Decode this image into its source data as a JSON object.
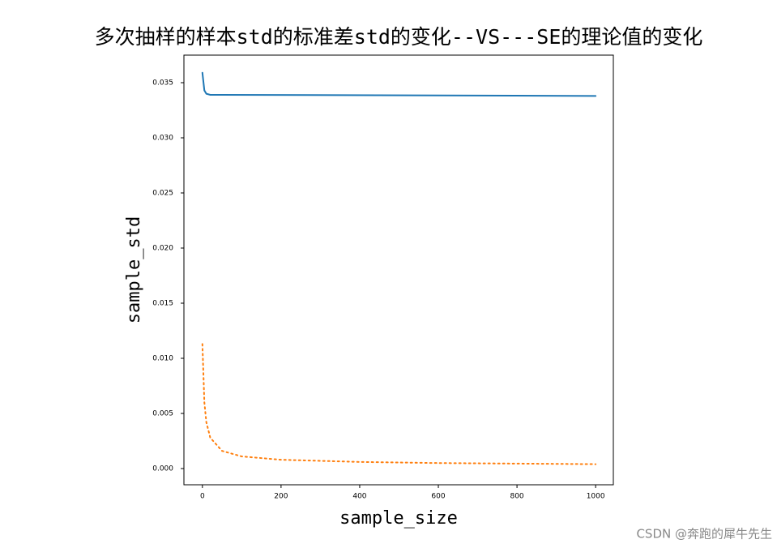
{
  "chart_data": {
    "type": "line",
    "title": "多次抽样的样本std的标准差std的变化--VS---SE的理论值的变化",
    "x_label": "sample_size",
    "y_label": "sample_std",
    "watermark": "CSDN @奔跑的犀牛先生",
    "series": [
      {
        "color": "#1f77b4",
        "linestyle": "solid",
        "x": [
          0,
          5,
          10,
          20,
          50,
          1000
        ],
        "values": [
          0.0359,
          0.0343,
          0.034,
          0.0339,
          0.0339,
          0.0338
        ]
      },
      {
        "color": "#ff7f0e",
        "linestyle": "dotted",
        "x": [
          0,
          5,
          10,
          20,
          50,
          100,
          200,
          400,
          600,
          1000
        ],
        "values": [
          0.0113,
          0.006,
          0.0042,
          0.0028,
          0.0016,
          0.0011,
          0.0008,
          0.0006,
          0.0005,
          0.0004
        ]
      }
    ],
    "xlim": [
      -47,
      1045
    ],
    "ylim": [
      -0.00147,
      0.0375
    ],
    "xticks": [
      0,
      200,
      400,
      600,
      800,
      1000
    ],
    "yticks": [
      {
        "value": 0,
        "label": "0.000"
      },
      0.005,
      {
        "value": 0.01,
        "label": "0.010"
      },
      0.015,
      {
        "value": 0.02,
        "label": "0.020"
      },
      0.025,
      {
        "value": 0.03,
        "label": "0.030"
      },
      0.035
    ],
    "grid": false
  }
}
